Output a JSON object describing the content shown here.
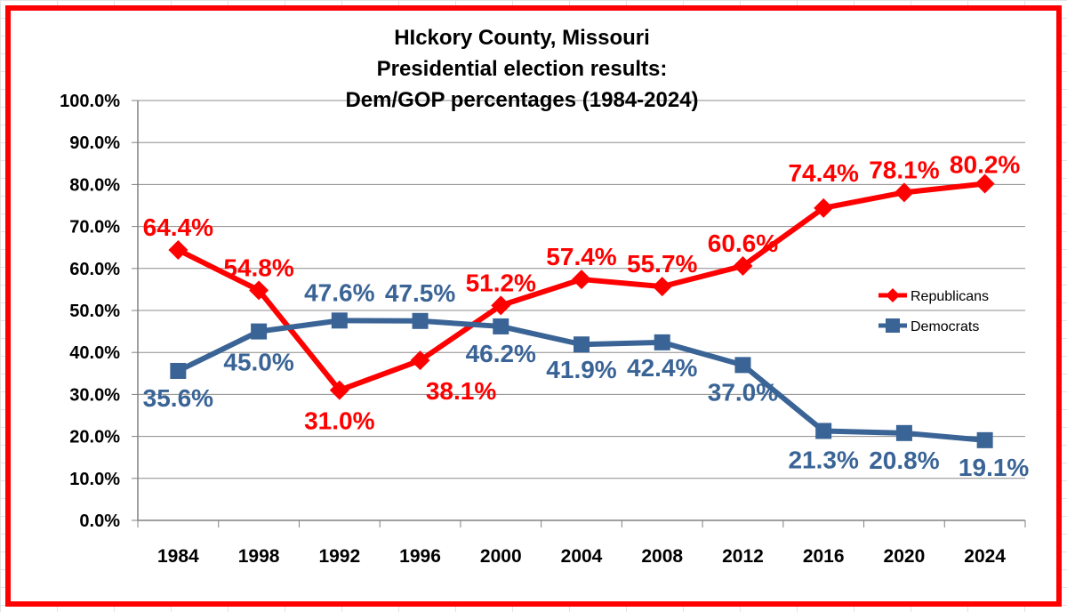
{
  "chart_data": {
    "type": "line",
    "title_lines": [
      "HIckory County, Missouri",
      "Presidential election results:",
      "Dem/GOP percentages (1984-2024)"
    ],
    "categories": [
      "1984",
      "1998",
      "1992",
      "1996",
      "2000",
      "2004",
      "2008",
      "2012",
      "2016",
      "2020",
      "2024"
    ],
    "y_tick_labels": [
      "0.0%",
      "10.0%",
      "20.0%",
      "30.0%",
      "40.0%",
      "50.0%",
      "60.0%",
      "70.0%",
      "80.0%",
      "90.0%",
      "100.0%"
    ],
    "ylim": [
      0,
      100
    ],
    "grid": "horizontal",
    "legend_position": "right",
    "series": [
      {
        "name": "Republicans",
        "color": "#ff0000",
        "marker": "diamond",
        "values": [
          64.4,
          54.8,
          31.0,
          38.1,
          51.2,
          57.4,
          55.7,
          60.6,
          74.4,
          78.1,
          80.2
        ],
        "labels": [
          "64.4%",
          "54.8%",
          "31.0%",
          "38.1%",
          "51.2%",
          "57.4%",
          "55.7%",
          "60.6%",
          "74.4%",
          "78.1%",
          "80.2%"
        ]
      },
      {
        "name": "Democrats",
        "color": "#3a6496",
        "marker": "square",
        "values": [
          35.6,
          45.0,
          47.6,
          47.5,
          46.2,
          41.9,
          42.4,
          37.0,
          21.3,
          20.8,
          19.1
        ],
        "labels": [
          "35.6%",
          "45.0%",
          "47.6%",
          "47.5%",
          "46.2%",
          "41.9%",
          "42.4%",
          "37.0%",
          "21.3%",
          "20.8%",
          "19.1%"
        ]
      }
    ]
  }
}
